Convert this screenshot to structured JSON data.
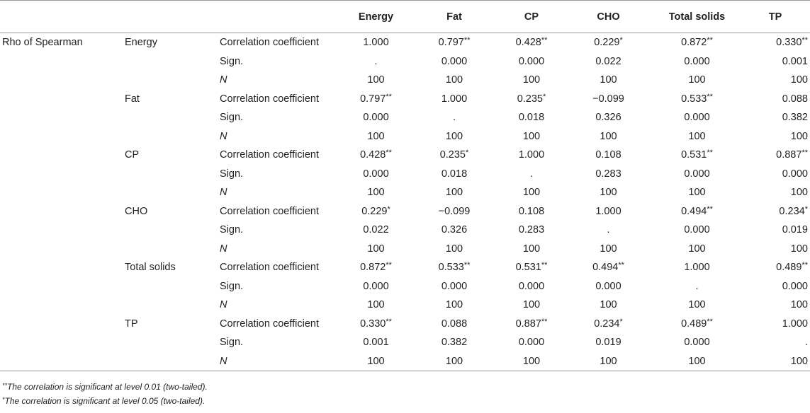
{
  "table": {
    "columns": [
      "Energy",
      "Fat",
      "CP",
      "CHO",
      "Total solids",
      "TP"
    ],
    "method": "Rho of Spearman",
    "blocks": [
      {
        "variable": "Energy",
        "rows": [
          {
            "stat": "Correlation coefficient",
            "values": [
              [
                "1.000",
                ""
              ],
              [
                "0.797",
                "**"
              ],
              [
                "0.428",
                "**"
              ],
              [
                "0.229",
                "*"
              ],
              [
                "0.872",
                "**"
              ],
              [
                "0.330",
                "**"
              ]
            ]
          },
          {
            "stat": "Sign.",
            "values": [
              [
                ".",
                ""
              ],
              [
                "0.000",
                ""
              ],
              [
                "0.000",
                ""
              ],
              [
                "0.022",
                ""
              ],
              [
                "0.000",
                ""
              ],
              [
                "0.001",
                ""
              ]
            ]
          },
          {
            "stat": "N",
            "values": [
              [
                "100",
                ""
              ],
              [
                "100",
                ""
              ],
              [
                "100",
                ""
              ],
              [
                "100",
                ""
              ],
              [
                "100",
                ""
              ],
              [
                "100",
                ""
              ]
            ]
          }
        ]
      },
      {
        "variable": "Fat",
        "rows": [
          {
            "stat": "Correlation coefficient",
            "values": [
              [
                "0.797",
                "**"
              ],
              [
                "1.000",
                ""
              ],
              [
                "0.235",
                "*"
              ],
              [
                "−0.099",
                ""
              ],
              [
                "0.533",
                "**"
              ],
              [
                "0.088",
                ""
              ]
            ]
          },
          {
            "stat": "Sign.",
            "values": [
              [
                "0.000",
                ""
              ],
              [
                ".",
                ""
              ],
              [
                "0.018",
                ""
              ],
              [
                "0.326",
                ""
              ],
              [
                "0.000",
                ""
              ],
              [
                "0.382",
                ""
              ]
            ]
          },
          {
            "stat": "N",
            "values": [
              [
                "100",
                ""
              ],
              [
                "100",
                ""
              ],
              [
                "100",
                ""
              ],
              [
                "100",
                ""
              ],
              [
                "100",
                ""
              ],
              [
                "100",
                ""
              ]
            ]
          }
        ]
      },
      {
        "variable": "CP",
        "rows": [
          {
            "stat": "Correlation coefficient",
            "values": [
              [
                "0.428",
                "**"
              ],
              [
                "0.235",
                "*"
              ],
              [
                "1.000",
                ""
              ],
              [
                "0.108",
                ""
              ],
              [
                "0.531",
                "**"
              ],
              [
                "0.887",
                "**"
              ]
            ]
          },
          {
            "stat": "Sign.",
            "values": [
              [
                "0.000",
                ""
              ],
              [
                "0.018",
                ""
              ],
              [
                ".",
                ""
              ],
              [
                "0.283",
                ""
              ],
              [
                "0.000",
                ""
              ],
              [
                "0.000",
                ""
              ]
            ]
          },
          {
            "stat": "N",
            "values": [
              [
                "100",
                ""
              ],
              [
                "100",
                ""
              ],
              [
                "100",
                ""
              ],
              [
                "100",
                ""
              ],
              [
                "100",
                ""
              ],
              [
                "100",
                ""
              ]
            ]
          }
        ]
      },
      {
        "variable": "CHO",
        "rows": [
          {
            "stat": "Correlation coefficient",
            "values": [
              [
                "0.229",
                "*"
              ],
              [
                "−0.099",
                ""
              ],
              [
                "0.108",
                ""
              ],
              [
                "1.000",
                ""
              ],
              [
                "0.494",
                "**"
              ],
              [
                "0.234",
                "*"
              ]
            ]
          },
          {
            "stat": "Sign.",
            "values": [
              [
                "0.022",
                ""
              ],
              [
                "0.326",
                ""
              ],
              [
                "0.283",
                ""
              ],
              [
                ".",
                ""
              ],
              [
                "0.000",
                ""
              ],
              [
                "0.019",
                ""
              ]
            ]
          },
          {
            "stat": "N",
            "values": [
              [
                "100",
                ""
              ],
              [
                "100",
                ""
              ],
              [
                "100",
                ""
              ],
              [
                "100",
                ""
              ],
              [
                "100",
                ""
              ],
              [
                "100",
                ""
              ]
            ]
          }
        ]
      },
      {
        "variable": "Total solids",
        "rows": [
          {
            "stat": "Correlation coefficient",
            "values": [
              [
                "0.872",
                "**"
              ],
              [
                "0.533",
                "**"
              ],
              [
                "0.531",
                "**"
              ],
              [
                "0.494",
                "**"
              ],
              [
                "1.000",
                ""
              ],
              [
                "0.489",
                "**"
              ]
            ]
          },
          {
            "stat": "Sign.",
            "values": [
              [
                "0.000",
                ""
              ],
              [
                "0.000",
                ""
              ],
              [
                "0.000",
                ""
              ],
              [
                "0.000",
                ""
              ],
              [
                ".",
                ""
              ],
              [
                "0.000",
                ""
              ]
            ]
          },
          {
            "stat": "N",
            "values": [
              [
                "100",
                ""
              ],
              [
                "100",
                ""
              ],
              [
                "100",
                ""
              ],
              [
                "100",
                ""
              ],
              [
                "100",
                ""
              ],
              [
                "100",
                ""
              ]
            ]
          }
        ]
      },
      {
        "variable": "TP",
        "rows": [
          {
            "stat": "Correlation coefficient",
            "values": [
              [
                "0.330",
                "**"
              ],
              [
                "0.088",
                ""
              ],
              [
                "0.887",
                "**"
              ],
              [
                "0.234",
                "*"
              ],
              [
                "0.489",
                "**"
              ],
              [
                "1.000",
                ""
              ]
            ]
          },
          {
            "stat": "Sign.",
            "values": [
              [
                "0.001",
                ""
              ],
              [
                "0.382",
                ""
              ],
              [
                "0.000",
                ""
              ],
              [
                "0.019",
                ""
              ],
              [
                "0.000",
                ""
              ],
              [
                ".",
                ""
              ]
            ]
          },
          {
            "stat": "N",
            "values": [
              [
                "100",
                ""
              ],
              [
                "100",
                ""
              ],
              [
                "100",
                ""
              ],
              [
                "100",
                ""
              ],
              [
                "100",
                ""
              ],
              [
                "100",
                ""
              ]
            ]
          }
        ]
      }
    ]
  },
  "footnotes": [
    {
      "mark": "**",
      "text": "The correlation is significant at level 0.01 (two-tailed)."
    },
    {
      "mark": "*",
      "text": "The correlation is significant at level 0.05 (two-tailed)."
    }
  ],
  "colors": {
    "text": "#222222",
    "rule": "#9a9a9a",
    "background": "#ffffff"
  }
}
